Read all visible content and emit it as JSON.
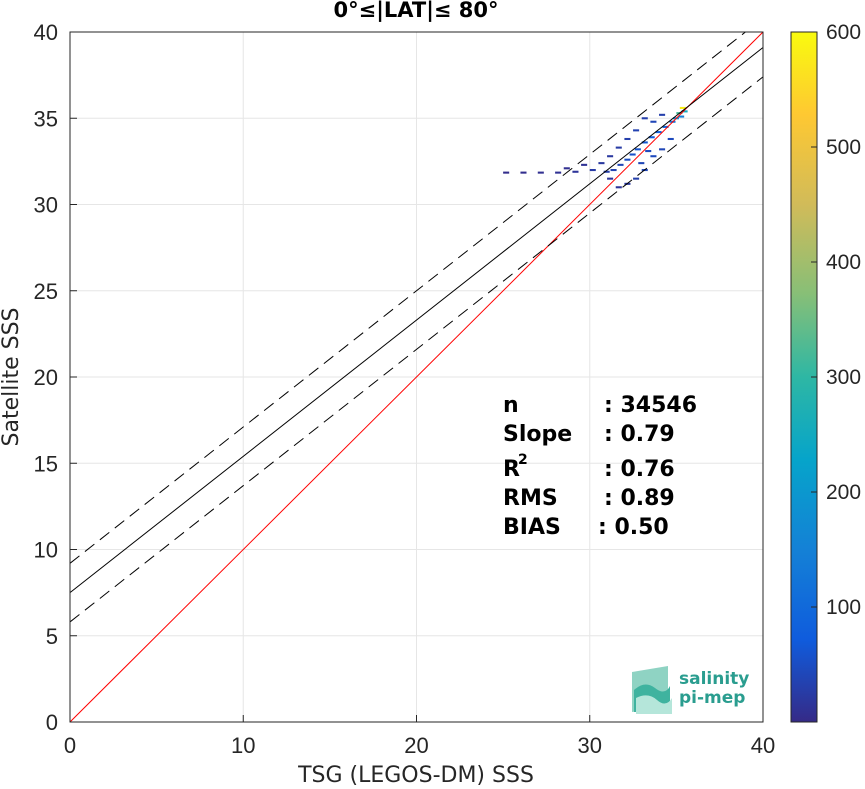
{
  "chart_data": {
    "type": "heatmap",
    "title": "0°≤|LAT|≤ 80°",
    "xlabel": "TSG (LEGOS-DM) SSS",
    "ylabel": "Satellite SSS",
    "xlim": [
      0,
      40
    ],
    "ylim": [
      0,
      40
    ],
    "xticks": [
      "0",
      "10",
      "20",
      "30",
      "40"
    ],
    "yticks": [
      "0",
      "5",
      "10",
      "15",
      "20",
      "25",
      "30",
      "35",
      "40"
    ],
    "grid": true,
    "colorbar": {
      "range": [
        0,
        600
      ],
      "ticks": [
        "100",
        "200",
        "300",
        "400",
        "500",
        "600"
      ],
      "colormap": "parula"
    },
    "lines": [
      {
        "name": "",
        "kind": "one-to-one",
        "color": "#ff0000",
        "slope": 1,
        "intercept": 0
      },
      {
        "name": "",
        "kind": "regression",
        "color": "#000000",
        "slope": 0.79,
        "intercept": 7.5
      },
      {
        "name": "",
        "kind": "regression-upper",
        "color": "#000000",
        "dashed": true,
        "slope": 0.79,
        "intercept": 9.2
      },
      {
        "name": "",
        "kind": "regression-lower",
        "color": "#000000",
        "dashed": true,
        "slope": 0.79,
        "intercept": 5.8
      }
    ],
    "density_cells": [
      [
        35.2,
        35.6,
        580
      ],
      [
        35.0,
        35.3,
        320
      ],
      [
        35.3,
        35.4,
        250
      ],
      [
        34.8,
        35.0,
        180
      ],
      [
        34.6,
        34.8,
        120
      ],
      [
        35.1,
        35.1,
        150
      ],
      [
        34.2,
        34.5,
        90
      ],
      [
        33.8,
        34.2,
        80
      ],
      [
        33.4,
        33.9,
        70
      ],
      [
        33.0,
        33.6,
        65
      ],
      [
        32.6,
        33.2,
        60
      ],
      [
        32.3,
        32.9,
        55
      ],
      [
        32.0,
        32.6,
        50
      ],
      [
        31.6,
        32.3,
        40
      ],
      [
        31.2,
        32.0,
        35
      ],
      [
        30.8,
        31.9,
        30
      ],
      [
        30.0,
        32.0,
        25
      ],
      [
        29.0,
        31.9,
        15
      ],
      [
        28.0,
        31.85,
        10
      ],
      [
        27.0,
        31.85,
        8
      ],
      [
        26.0,
        31.85,
        6
      ],
      [
        25.0,
        31.85,
        4
      ],
      [
        33.5,
        34.8,
        40
      ],
      [
        33.0,
        35.0,
        30
      ],
      [
        32.5,
        34.3,
        35
      ],
      [
        32.0,
        33.8,
        30
      ],
      [
        31.5,
        33.3,
        25
      ],
      [
        31.0,
        32.8,
        20
      ],
      [
        32.5,
        31.5,
        30
      ],
      [
        32.0,
        31.2,
        20
      ],
      [
        31.5,
        31.0,
        15
      ],
      [
        33.0,
        32.0,
        40
      ],
      [
        33.5,
        32.8,
        45
      ],
      [
        34.0,
        33.2,
        40
      ],
      [
        34.5,
        33.8,
        45
      ],
      [
        30.5,
        32.4,
        20
      ],
      [
        29.5,
        32.3,
        12
      ],
      [
        28.5,
        32.1,
        8
      ],
      [
        34.0,
        35.2,
        30
      ],
      [
        33.2,
        33.1,
        45
      ],
      [
        32.8,
        32.4,
        40
      ],
      [
        31.0,
        31.5,
        15
      ]
    ]
  },
  "stats": {
    "n_label": "n",
    "n_value": ": 34546",
    "slope_label": "Slope",
    "slope_value": ": 0.79",
    "r2_label": "R",
    "r2_sup": "2",
    "r2_value": ": 0.76",
    "rms_label": "RMS",
    "rms_value": ": 0.89",
    "bias_label": "BIAS",
    "bias_value": ": 0.50"
  },
  "logo": {
    "line1": "salinity",
    "line2": "pi-mep",
    "accent": "#2a9d8f"
  }
}
